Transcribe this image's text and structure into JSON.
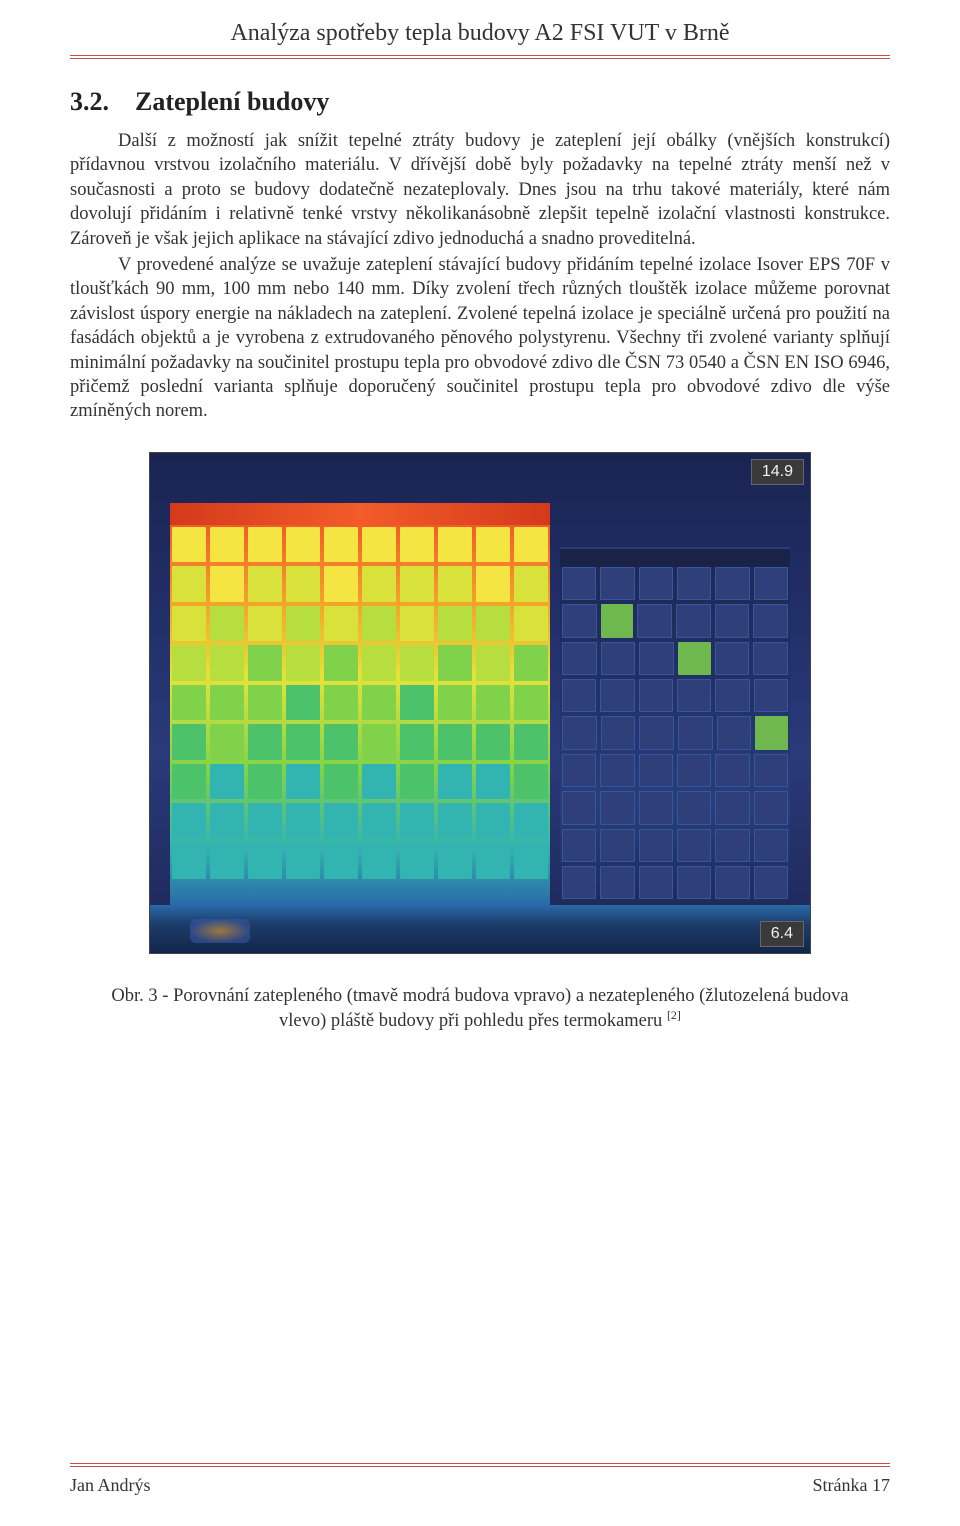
{
  "header": {
    "title": "Analýza spotřeby tepla budovy A2 FSI VUT v Brně",
    "rule_color": "#c0504d"
  },
  "section": {
    "number": "3.2.",
    "title": "Zateplení budovy"
  },
  "paragraphs": {
    "p1": "Další z možností jak snížit tepelné ztráty budovy je zateplení její obálky (vnějších konstrukcí) přídavnou vrstvou izolačního materiálu. V dřívější době byly požadavky na tepelné ztráty menší než v současnosti a proto se budovy dodatečně nezateplovaly. Dnes jsou na trhu takové materiály, které nám dovolují přidáním i relativně tenké vrstvy několikanásobně zlepšit tepelně izolační vlastnosti konstrukce. Zároveň je však jejich aplikace na stávající zdivo jednoduchá a snadno proveditelná.",
    "p2": "V provedené analýze se uvažuje zateplení stávající budovy přidáním tepelné izolace Isover EPS 70F v tloušťkách 90 mm, 100 mm nebo 140 mm. Díky zvolení třech různých tlouštěk izolace můžeme porovnat závislost úspory energie na nákladech na zateplení. Zvolené tepelná izolace je speciálně určená pro použití na fasádách objektů a je vyrobena z extrudovaného pěnového polystyrenu. Všechny tři zvolené varianty splňují minimální požadavky na součinitel prostupu tepla pro obvodové zdivo dle ČSN 73 0540 a ČSN EN ISO 6946, přičemž poslední varianta splňuje doporučený součinitel prostupu tepla pro obvodové zdivo dle výše zmíněných norem."
  },
  "figure": {
    "type": "thermal-image",
    "scale_high_label": "14.9",
    "scale_low_label": "6.4",
    "scale_high_value": 14.9,
    "scale_low_value": 6.4,
    "background_color": "#1a2452",
    "left_building": {
      "description": "uninsulated",
      "floors": 9,
      "windows_per_floor": 10,
      "facade_gradient": [
        "#f35b2a",
        "#f4a22a",
        "#e6e23a",
        "#7fd24a",
        "#32b4b0",
        "#2a6aa8"
      ],
      "roof_color": "#f35b2a"
    },
    "right_building": {
      "description": "insulated",
      "floors": 9,
      "windows_per_floor": 6,
      "facade_color": "#233268",
      "window_color": "#2f3f7a",
      "roof_color": "#1a2248"
    },
    "badge_bg": "#3a3a3a",
    "badge_fg": "#f0f0f0"
  },
  "caption": {
    "prefix": "Obr. 3 - ",
    "text": "Porovnání zatepleného (tmavě modrá budova vpravo) a nezatepleného (žlutozelená budova vlevo) pláště budovy při pohledu přes termokameru ",
    "ref": "[2]"
  },
  "footer": {
    "author": "Jan Andrýs",
    "page_label": "Stránka 17"
  },
  "typography": {
    "body_font_family": "Times New Roman",
    "body_font_size_pt": 14,
    "header_font_size_pt": 18,
    "section_heading_font_size_pt": 20,
    "text_color": "#333333"
  }
}
